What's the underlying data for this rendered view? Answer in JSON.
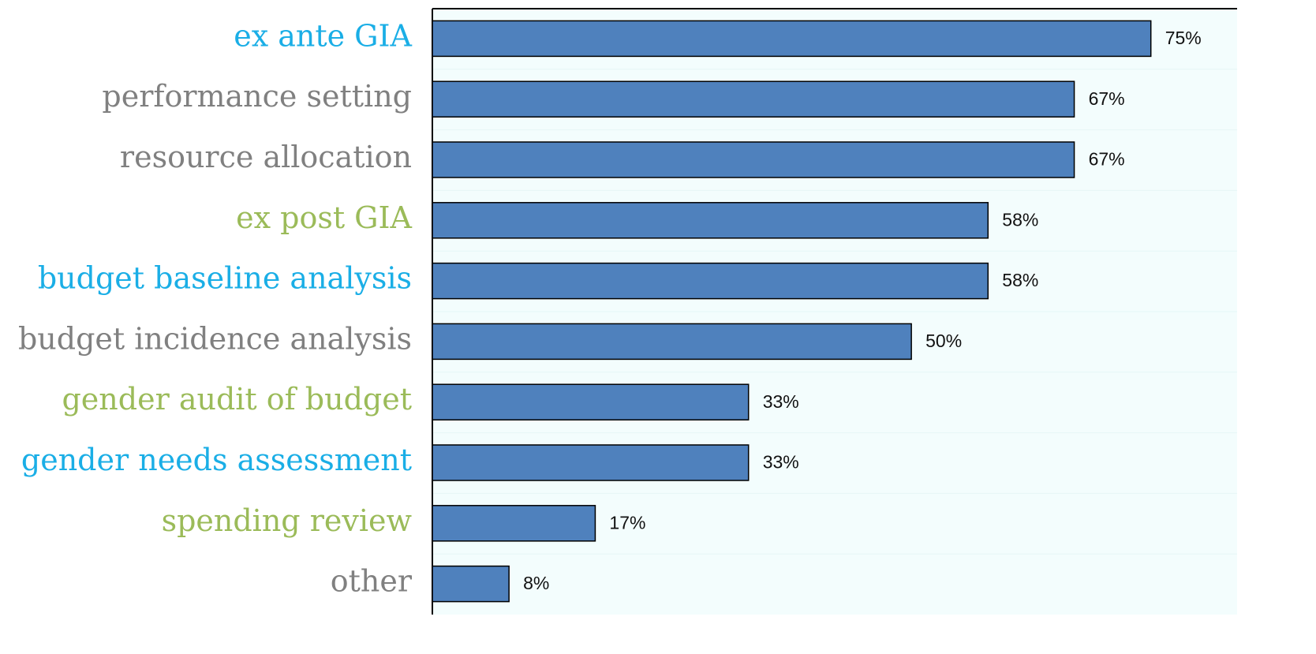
{
  "chart_data": {
    "type": "barh",
    "categories": [
      "ex ante GIA",
      "performance setting",
      "resource allocation",
      "ex post GIA",
      "budget baseline analysis",
      "budget incidence analysis",
      "gender audit of budget",
      "gender needs assessment",
      "spending review",
      "other"
    ],
    "label_colors": [
      "#1aaee6",
      "#808080",
      "#808080",
      "#9bbb59",
      "#1aaee6",
      "#808080",
      "#9bbb59",
      "#1aaee6",
      "#9bbb59",
      "#808080"
    ],
    "values": [
      75,
      67,
      67,
      58,
      58,
      50,
      33,
      33,
      17,
      8
    ],
    "value_labels": [
      "75%",
      "67%",
      "67%",
      "58%",
      "58%",
      "50%",
      "33%",
      "33%",
      "17%",
      "8%"
    ],
    "color": "#4f81bd",
    "xlim": [
      0,
      84
    ]
  }
}
